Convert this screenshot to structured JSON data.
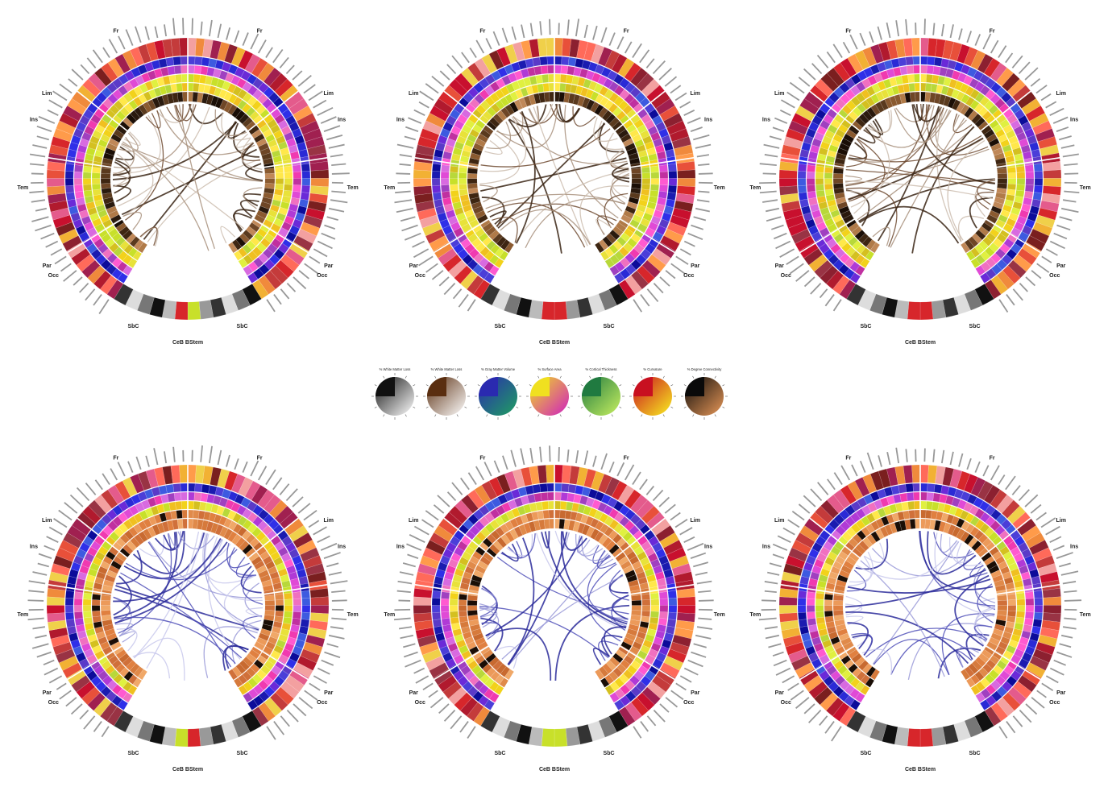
{
  "lobe_labels": {
    "fr": "Fr",
    "ins": "Ins",
    "lim": "Lim",
    "tem": "Tem",
    "par": "Par",
    "occ": "Occ",
    "sbc": "SbC",
    "ceb_bstem": "CeB BStem"
  },
  "legend": {
    "titles": [
      "% White Matter Loss",
      "% White Matter Loss",
      "% Gray Matter Volume",
      "% Surface Area",
      "% Cortical Thickness",
      "% Curvature",
      "% Degree Connectivity"
    ]
  },
  "palette": {
    "outer_ring": [
      "#d7262b",
      "#b11a2e",
      "#e8503a",
      "#f08a3c",
      "#7a1f1f",
      "#c43b3b",
      "#f2b134",
      "#a02050",
      "#ff6a5a",
      "#8c2030",
      "#e45b8c",
      "#f0d04a",
      "#c8102e",
      "#993344",
      "#f3a0a0",
      "#ff9b4a"
    ],
    "ring_blue_purple": [
      "#2a2ad6",
      "#4b3ed8",
      "#1b1bb0",
      "#6a2ad8",
      "#3d5ae0",
      "#2f2fe8",
      "#5a3ac8",
      "#0c0c9a"
    ],
    "ring_magenta": [
      "#e04ad6",
      "#f03ab0",
      "#b03ad6",
      "#d86ae0",
      "#f070c0",
      "#c030a0",
      "#ff5ad0",
      "#a040c0"
    ],
    "ring_yellow_green": [
      "#e8e23a",
      "#f2d21b",
      "#c8e02a",
      "#ffe84a",
      "#d4c020",
      "#b8d83a",
      "#f0c020",
      "#e0f040"
    ],
    "ring_brown_top": [
      "#2a1a0e",
      "#5a3a1e",
      "#8a5a30",
      "#b07a48",
      "#3e2612",
      "#1a0e06",
      "#c08858",
      "#6e4626"
    ],
    "ring_orange_bottom": [
      "#e08a4a",
      "#d67a3c",
      "#ec9a5a",
      "#c86a30",
      "#f0a868",
      "#e08040",
      "#d0703a",
      "#1a0e06"
    ],
    "legend_colors": [
      [
        "#111111",
        "#ffffff"
      ],
      [
        "#5a2e10",
        "#ffffff"
      ],
      [
        "#2a2ab0",
        "#1fa060"
      ],
      [
        "#f0e020",
        "#d020c0"
      ],
      [
        "#207a40",
        "#c8f060"
      ],
      [
        "#c81020",
        "#f8f020"
      ],
      [
        "#0a0a0a",
        "#e89858"
      ]
    ],
    "chords_brown": [
      "#3a2414",
      "#6e4a30",
      "#a8907c",
      "#cdbdaf"
    ],
    "chords_blue": [
      "#2a2a9a",
      "#5050b8",
      "#9a9ad8",
      "#c8c8ec"
    ]
  }
}
